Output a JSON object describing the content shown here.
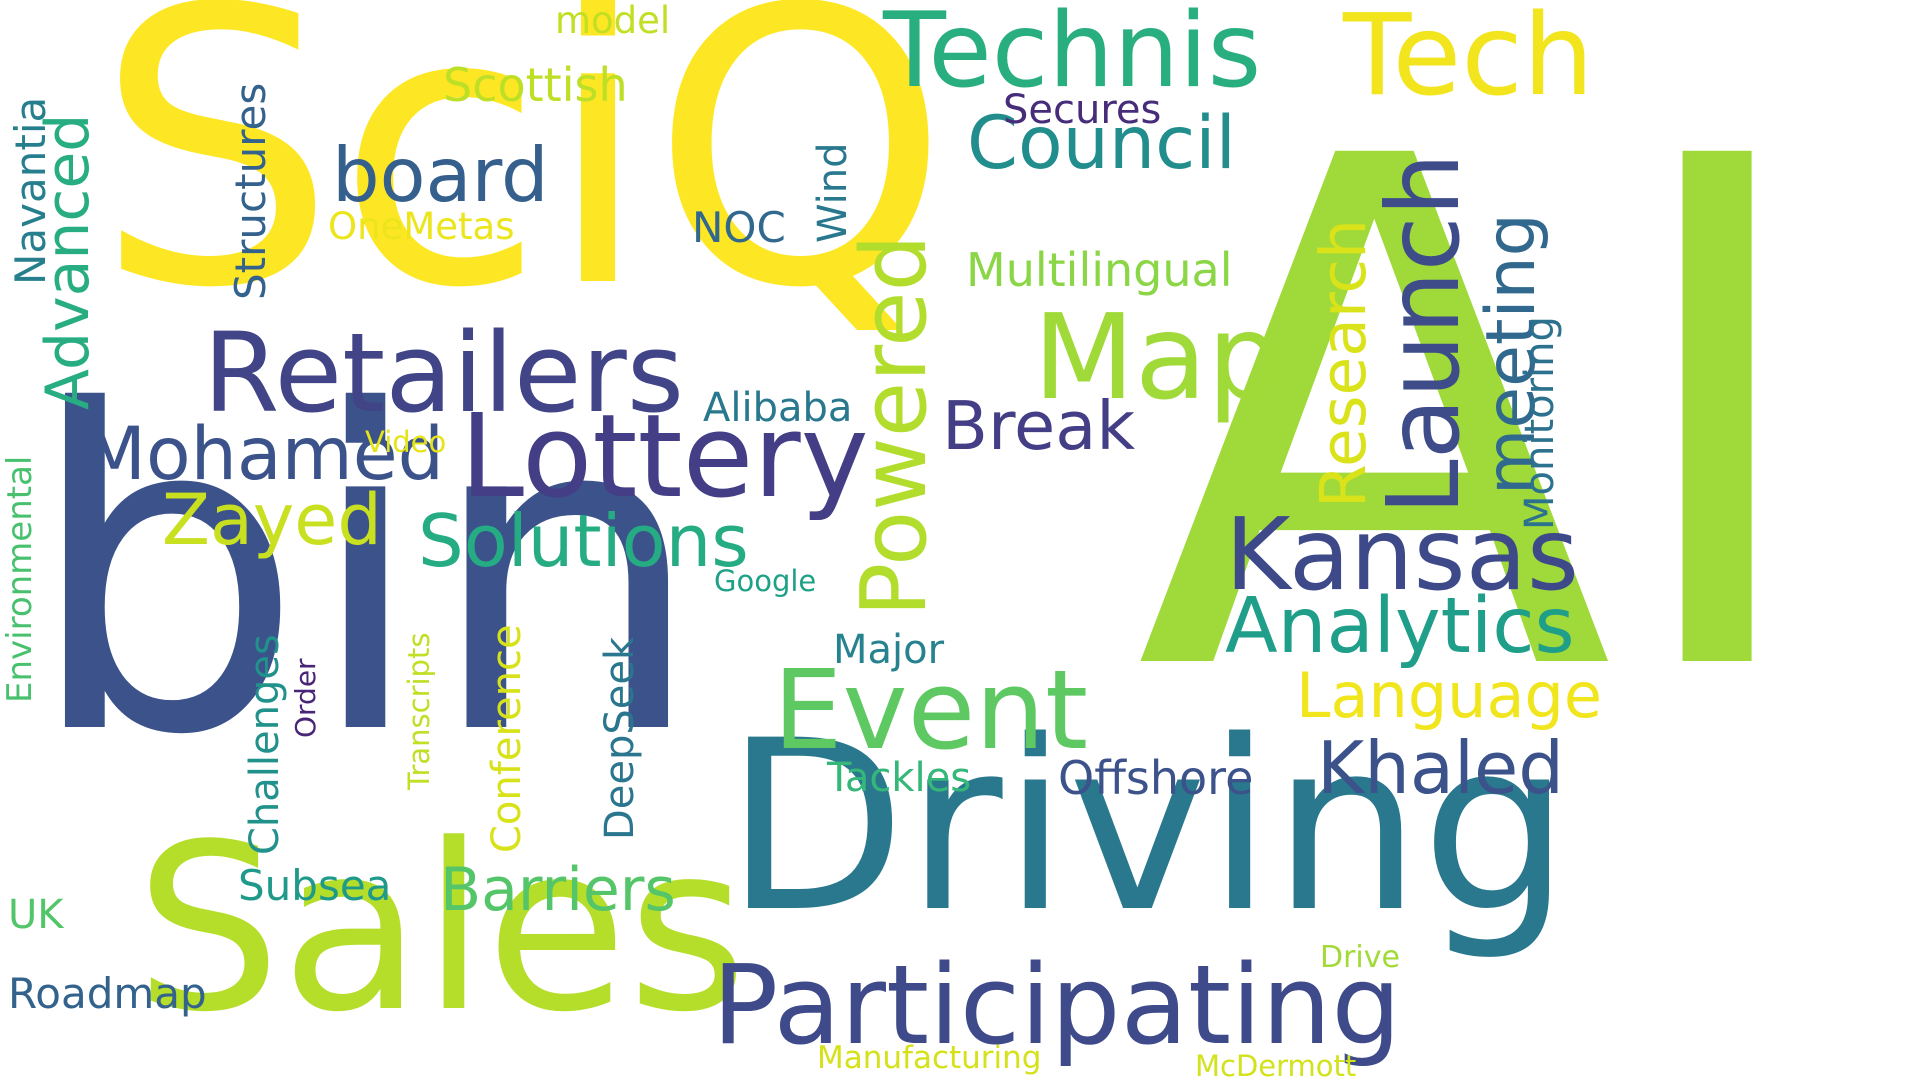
{
  "words": [
    {
      "text": "AI",
      "color": "#9fd93a"
    },
    {
      "text": "bin",
      "color": "#3b528b"
    },
    {
      "text": "SciQ",
      "color": "#fde725"
    },
    {
      "text": "Driving",
      "color": "#2a788e"
    },
    {
      "text": "Sales",
      "color": "#b5de2b"
    },
    {
      "text": "Participating",
      "color": "#3e4a89"
    },
    {
      "text": "Lottery",
      "color": "#433e85"
    },
    {
      "text": "Retailers",
      "color": "#414487"
    },
    {
      "text": "Technis",
      "color": "#29af7f"
    },
    {
      "text": "Tech",
      "color": "#f2e51d"
    },
    {
      "text": "Map",
      "color": "#a0da39"
    },
    {
      "text": "Event",
      "color": "#5ec962"
    },
    {
      "text": "Kansas",
      "color": "#3e4989"
    },
    {
      "text": "Launch",
      "color": "#3e4c8a"
    },
    {
      "text": "Powered",
      "color": "#b2dd2d"
    },
    {
      "text": "Solutions",
      "color": "#25ac82"
    },
    {
      "text": "Analytics",
      "color": "#1f9e89"
    },
    {
      "text": "Khaled",
      "color": "#3b528b"
    },
    {
      "text": "Mohamed",
      "color": "#3b528b"
    },
    {
      "text": "Research",
      "color": "#dae319"
    },
    {
      "text": "meeting",
      "color": "#31688e"
    },
    {
      "text": "board",
      "color": "#355f8d"
    },
    {
      "text": "Council",
      "color": "#228d8d"
    },
    {
      "text": "Break",
      "color": "#433e85"
    },
    {
      "text": "Zayed",
      "color": "#c8e020"
    },
    {
      "text": "Language",
      "color": "#f1e51d"
    },
    {
      "text": "Advanced",
      "color": "#27ad81"
    },
    {
      "text": "Barriers",
      "color": "#54c568"
    },
    {
      "text": "Monitoring",
      "color": "#2c728e"
    },
    {
      "text": "Multilingual",
      "color": "#8bd646"
    },
    {
      "text": "Scottish",
      "color": "#bddf26"
    },
    {
      "text": "Navantia",
      "color": "#277f8e"
    },
    {
      "text": "Structures",
      "color": "#33628d"
    },
    {
      "text": "Offshore",
      "color": "#3b528b"
    },
    {
      "text": "Conference",
      "color": "#d8e219"
    },
    {
      "text": "Challenges",
      "color": "#21918c"
    },
    {
      "text": "Environmental",
      "color": "#48c16e"
    },
    {
      "text": "Subsea",
      "color": "#1f9a8a"
    },
    {
      "text": "Secures",
      "color": "#472c7a"
    },
    {
      "text": "Alibaba",
      "color": "#2a788e"
    },
    {
      "text": "DeepSeek",
      "color": "#2a768e"
    },
    {
      "text": "Tackles",
      "color": "#35b779"
    },
    {
      "text": "Major",
      "color": "#26828e"
    },
    {
      "text": "NOC",
      "color": "#31688e"
    },
    {
      "text": "Wind",
      "color": "#2a788e"
    },
    {
      "text": "model",
      "color": "#c2df23"
    },
    {
      "text": "OneMetas",
      "color": "#ece51b"
    },
    {
      "text": "Roadmap",
      "color": "#33638d"
    },
    {
      "text": "UK",
      "color": "#52c569"
    },
    {
      "text": "Video",
      "color": "#e5e419"
    },
    {
      "text": "Google",
      "color": "#1fa187"
    },
    {
      "text": "Order",
      "color": "#482576"
    },
    {
      "text": "Transcripts",
      "color": "#c0df25"
    },
    {
      "text": "Drive",
      "color": "#a2da37"
    },
    {
      "text": "Manufacturing",
      "color": "#d5e21a"
    },
    {
      "text": "McDermott",
      "color": "#d2e21b"
    }
  ]
}
